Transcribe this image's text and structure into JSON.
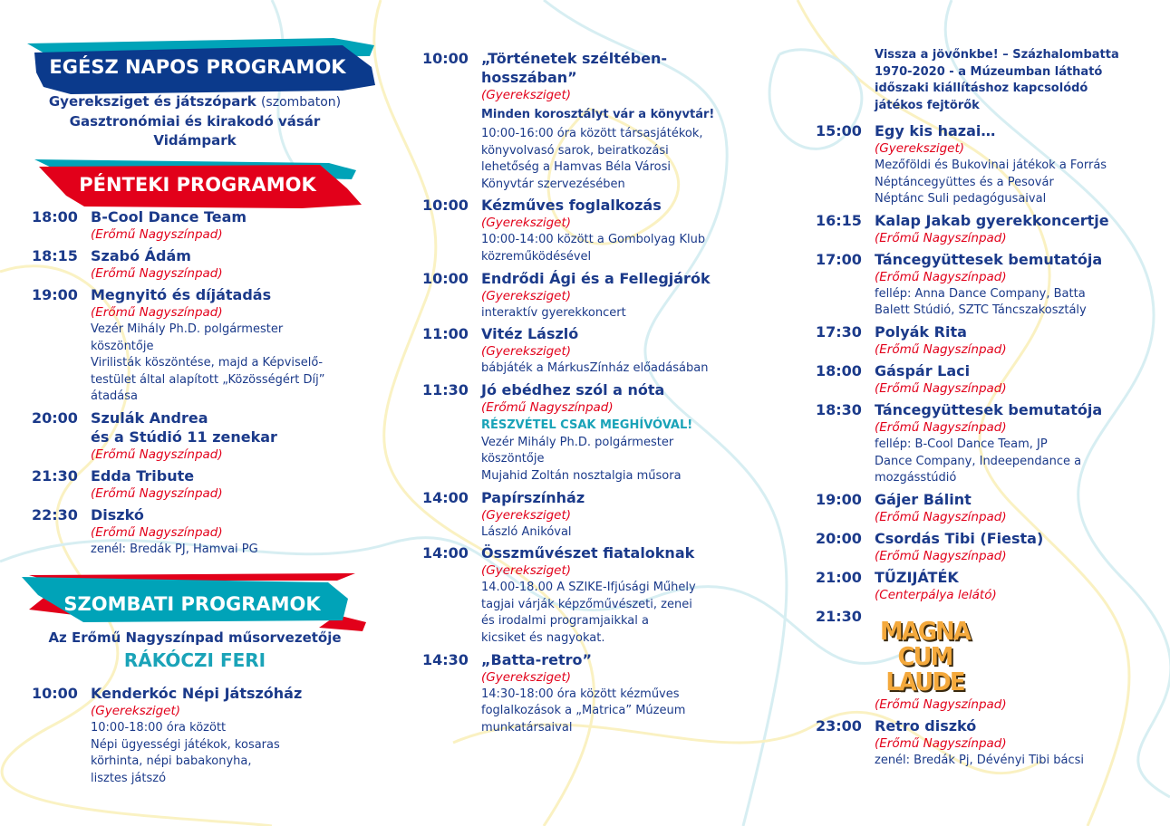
{
  "colors": {
    "navy": "#1b3a8a",
    "red": "#e2001a",
    "teal": "#1aa3b8",
    "banner_navy": "#0b3a8c"
  },
  "allday": {
    "heading": "EGÉSZ NAPOS PROGRAMOK",
    "line1_bold": "Gyereksziget és játszópark",
    "line1_note": "(szombaton)",
    "line2": "Gasztronómiai és kirakodó vásár",
    "line3": "Vidámpark"
  },
  "friday": {
    "heading": "PÉNTEKI PROGRAMOK",
    "events": [
      {
        "time": "18:00",
        "title": "B-Cool Dance Team",
        "venue": "(Erőmű Nagyszínpad)"
      },
      {
        "time": "18:15",
        "title": "Szabó Ádám",
        "venue": "(Erőmű Nagyszínpad)"
      },
      {
        "time": "19:00",
        "title": "Megnyitó és díjátadás",
        "venue": "(Erőmű Nagyszínpad)",
        "note1": "Vezér Mihály Ph.D. polgármester\nköszöntője",
        "note2": "Virilisták köszöntése, majd a Képviselő-\ntestület által alapított „Közösségért Díj”\nátadása"
      },
      {
        "time": "20:00",
        "title": "Szulák Andrea\nés a Stúdió 11 zenekar",
        "venue": "(Erőmű Nagyszínpad)"
      },
      {
        "time": "21:30",
        "title": "Edda Tribute",
        "venue": "(Erőmű Nagyszínpad)"
      },
      {
        "time": "22:30",
        "title": "Diszkó",
        "venue": "(Erőmű Nagyszínpad)",
        "note1": "zenél: Bredák PJ, Hamvai PG"
      }
    ]
  },
  "saturday": {
    "heading": "SZOMBATI PROGRAMOK",
    "host_label": "Az Erőmű Nagyszínpad műsorvezetője",
    "host_name": "RÁKÓCZI FERI",
    "events": [
      {
        "time": "10:00",
        "title": "Kenderkóc Népi Játszóház",
        "venue": "(Gyereksziget)",
        "note1": "10:00-18:00 óra között\nNépi ügyességi játékok, kosaras\nkörhinta, népi babakonyha,\nlisztes játszó"
      },
      {
        "time": "10:00",
        "title": "„Történetek széltében-\nhosszában”",
        "venue": "(Gyereksziget)",
        "sub": "Minden korosztályt vár a könyvtár!",
        "note1": "10:00-16:00 óra között társasjátékok,\nkönyvolvasó sarok, beiratkozási\nlehetőség a Hamvas Béla Városi\nKönyvtár szervezésében"
      },
      {
        "time": "10:00",
        "title": "Kézműves foglalkozás",
        "venue": "(Gyereksziget)",
        "note1": "10:00-14:00 között a Gombolyag Klub\nközreműködésével"
      },
      {
        "time": "10:00",
        "title": "Endrődi Ági és a Fellegjárók",
        "venue": "(Gyereksziget)",
        "note1": "interaktív gyerekkoncert"
      },
      {
        "time": "11:00",
        "title": "Vitéz László",
        "venue": "(Gyereksziget)",
        "note1": "bábjáték a MárkusZínház előadásában"
      },
      {
        "time": "11:30",
        "title": "Jó ebédhez szól a nóta",
        "venue": "(Erőmű Nagyszínpad)",
        "highlight": "RÉSZVÉTEL CSAK MEGHÍVÓVAL!",
        "note1": "Vezér Mihály Ph.D. polgármester\nköszöntője",
        "note2": "Mujahid Zoltán nosztalgia műsora"
      },
      {
        "time": "14:00",
        "title": "Papírszínház",
        "venue": "(Gyereksziget)",
        "note1": "László Anikóval"
      },
      {
        "time": "14:00",
        "title": "Összművészet fiataloknak",
        "venue": "(Gyereksziget)",
        "note1": "14.00-18.00 A SZIKE-Ifjúsági Műhely\ntagjai várják képzőművészeti, zenei\nés irodalmi programjaikkal a\nkicsiket és nagyokat."
      },
      {
        "time": "14:30",
        "title": "„Batta-retro”",
        "venue": "(Gyereksziget)",
        "note1": "14:30-18:00 óra között kézműves\nfoglalkozások a „Matrica” Múzeum\nmunkatársaival"
      },
      {
        "sub": "Vissza a jövőnkbe! – Százhalombatta\n1970-2020 - a Múzeumban látható\nidőszaki kiállításhoz kapcsolódó\njátékos fejtörők"
      },
      {
        "time": "15:00",
        "title": "Egy kis hazai…",
        "venue": "(Gyereksziget)",
        "note1": "Mezőföldi és Bukovinai játékok a Forrás\nNéptáncegyüttes és a Pesovár\nNéptánc Suli pedagógusaival"
      },
      {
        "time": "16:15",
        "title": "Kalap Jakab gyerekkoncertje",
        "venue": "(Erőmű Nagyszínpad)"
      },
      {
        "time": "17:00",
        "title": "Táncegyüttesek bemutatója",
        "venue": "(Erőmű Nagyszínpad)",
        "note1": "fellép: Anna Dance Company, Batta\nBalett Stúdió, SZTC Táncszakosztály"
      },
      {
        "time": "17:30",
        "title": "Polyák Rita",
        "venue": "(Erőmű Nagyszínpad)"
      },
      {
        "time": "18:00",
        "title": "Gáspár Laci",
        "venue": "(Erőmű Nagyszínpad)"
      },
      {
        "time": "18:30",
        "title": "Táncegyüttesek bemutatója",
        "venue": "(Erőmű Nagyszínpad)",
        "note1": "fellép: B-Cool Dance Team, JP\nDance Company, Indeependance a\nmozgásstúdió"
      },
      {
        "time": "19:00",
        "title": "Gájer Bálint",
        "venue": "(Erőmű Nagyszínpad)"
      },
      {
        "time": "20:00",
        "title": "Csordás Tibi (Fiesta)",
        "venue": "(Erőmű Nagyszínpad)"
      },
      {
        "time": "21:00",
        "title": "TŰZIJÁTÉK",
        "venue": "(Centerpálya lelátó)"
      },
      {
        "time": "21:30",
        "logo": "MAGNA CUM LAUDE",
        "venue": "(Erőmű Nagyszínpad)"
      },
      {
        "time": "23:00",
        "title": "Retro diszkó",
        "venue": "(Erőmű Nagyszínpad)",
        "note1": "zenél: Bredák Pj, Dévényi Tibi bácsi"
      }
    ]
  }
}
